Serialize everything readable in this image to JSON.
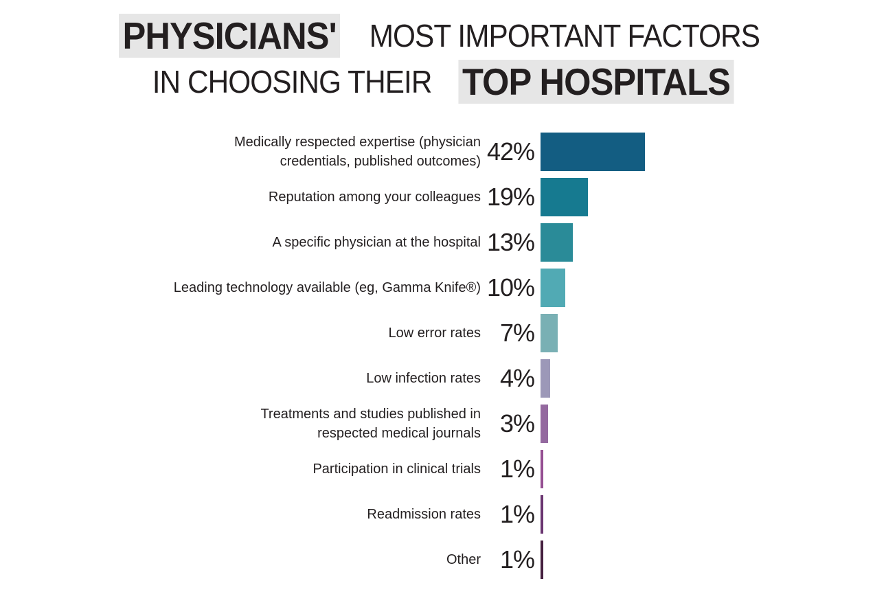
{
  "title": {
    "line1_highlight": "PHYSICIANS'",
    "line1_rest": "MOST IMPORTANT FACTORS",
    "line2_rest": "IN CHOOSING THEIR",
    "line2_highlight": "TOP HOSPITALS"
  },
  "chart_data": {
    "type": "bar",
    "orientation": "horizontal",
    "title": "PHYSICIANS' MOST IMPORTANT FACTORS IN CHOOSING THEIR TOP HOSPITALS",
    "xlabel": "",
    "ylabel": "",
    "grid": false,
    "legend": null,
    "categories": [
      "Medically respected expertise (physician credentials, published outcomes)",
      "Reputation among your colleagues",
      "A specific physician at the hospital",
      "Leading technology available (eg, Gamma Knife®)",
      "Low error rates",
      "Low infection rates",
      "Treatments and studies published in respected medical journals",
      "Participation in clinical trials",
      "Readmission rates",
      "Other"
    ],
    "values": [
      42,
      19,
      13,
      10,
      7,
      4,
      3,
      1,
      1,
      1
    ],
    "value_labels": [
      "42%",
      "19%",
      "13%",
      "10%",
      "7%",
      "4%",
      "3%",
      "1%",
      "1%",
      "1%"
    ],
    "colors": [
      "#135d82",
      "#167a90",
      "#2a8b98",
      "#51aab4",
      "#79b0b4",
      "#9c98b8",
      "#94699f",
      "#954f92",
      "#6a3570",
      "#45203f"
    ]
  },
  "rows": [
    {
      "label": "Medically respected expertise (physician credentials, published outcomes)",
      "pct": "42%",
      "value": 42,
      "color": "#135d82"
    },
    {
      "label": "Reputation among your colleagues",
      "pct": "19%",
      "value": 19,
      "color": "#167a90"
    },
    {
      "label": "A specific physician at the hospital",
      "pct": "13%",
      "value": 13,
      "color": "#2a8b98"
    },
    {
      "label": "Leading technology available (eg, Gamma Knife®)",
      "pct": "10%",
      "value": 10,
      "color": "#51aab4"
    },
    {
      "label": "Low error rates",
      "pct": "7%",
      "value": 7,
      "color": "#79b0b4"
    },
    {
      "label": "Low infection rates",
      "pct": "4%",
      "value": 4,
      "color": "#9c98b8"
    },
    {
      "label": "Treatments and studies published in respected medical journals",
      "pct": "3%",
      "value": 3,
      "color": "#94699f"
    },
    {
      "label": "Participation in clinical trials",
      "pct": "1%",
      "value": 1,
      "color": "#954f92"
    },
    {
      "label": "Readmission rates",
      "pct": "1%",
      "value": 1,
      "color": "#6a3570"
    },
    {
      "label": "Other",
      "pct": "1%",
      "value": 1,
      "color": "#45203f"
    }
  ]
}
